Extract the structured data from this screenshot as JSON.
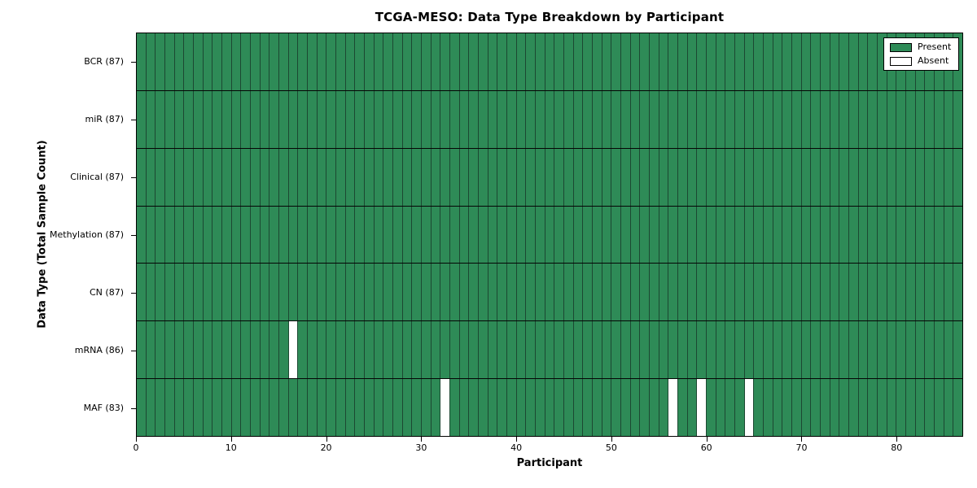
{
  "chart_data": {
    "type": "heatmap",
    "title": "TCGA-MESO: Data Type Breakdown by Participant",
    "xlabel": "Participant",
    "ylabel": "Data Type (Total Sample Count)",
    "x_ticks": [
      0,
      10,
      20,
      30,
      40,
      50,
      60,
      70,
      80
    ],
    "x_range": [
      0,
      87
    ],
    "n_participants": 87,
    "grid": "cell-borders-on",
    "legend_position": "upper-right",
    "rows": [
      {
        "name": "BCR",
        "label": "BCR (87)",
        "present_count": 87,
        "absent_participants": []
      },
      {
        "name": "miR",
        "label": "miR (87)",
        "present_count": 87,
        "absent_participants": []
      },
      {
        "name": "Clinical",
        "label": "Clinical (87)",
        "present_count": 87,
        "absent_participants": []
      },
      {
        "name": "Methylation",
        "label": "Methylation (87)",
        "present_count": 87,
        "absent_participants": []
      },
      {
        "name": "CN",
        "label": "CN (87)",
        "present_count": 87,
        "absent_participants": []
      },
      {
        "name": "mRNA",
        "label": "mRNA (86)",
        "present_count": 86,
        "absent_participants": [
          16
        ]
      },
      {
        "name": "MAF",
        "label": "MAF (83)",
        "present_count": 83,
        "absent_participants": [
          32,
          56,
          59,
          64
        ]
      }
    ],
    "legend": [
      {
        "label": "Present",
        "color": "#2e8b57"
      },
      {
        "label": "Absent",
        "color": "#ffffff"
      }
    ],
    "colors": {
      "present": "#2e8b57",
      "absent": "#ffffff",
      "cell_edge": "#1c4832",
      "row_divider": "#050505",
      "frame": "#000000"
    }
  }
}
